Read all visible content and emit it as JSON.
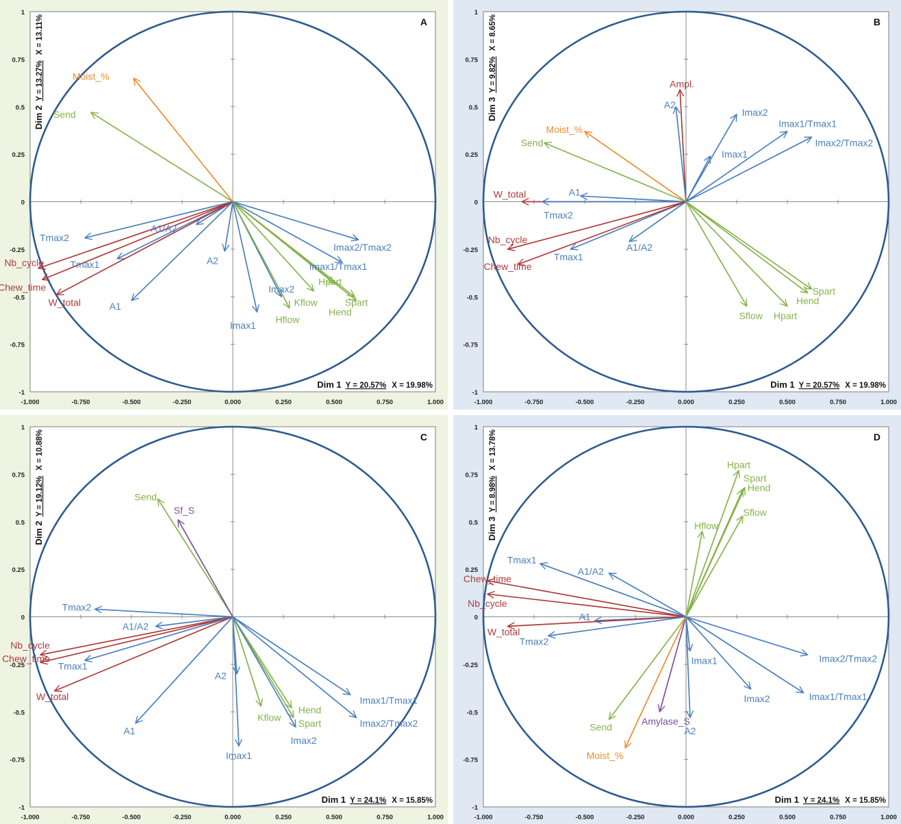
{
  "colors": {
    "blue": "#4a7fbf",
    "red": "#b03a3a",
    "green": "#86b34a",
    "orange": "#f08a2c",
    "purple": "#7b4fa0",
    "circle": "#2e5a8e",
    "panel_bg_green": "#eef3e2",
    "panel_bg_blue": "#dfe8f3"
  },
  "chart_data": [
    {
      "type": "scatter",
      "panel": "A",
      "background": "green",
      "xlim": [
        -1,
        1
      ],
      "ylim": [
        -1,
        1
      ],
      "x_ticks": [
        "-1.000",
        "-0.750",
        "-0.500",
        "-0.250",
        "0.000",
        "0.250",
        "0.500",
        "0.750",
        "1.000"
      ],
      "y_ticks": [
        "1",
        "0.75",
        "0.5",
        "0.25",
        "0",
        "-0.25",
        "-0.5",
        "-0.75",
        "-1"
      ],
      "xaxis": {
        "dim": "Dim 1",
        "y_pct": "Y = 20.57%",
        "x_pct": "X = 19.98%"
      },
      "yaxis": {
        "dim": "Dim 2",
        "y_pct": "Y = 13.27%",
        "x_pct": "X = 13.11%"
      },
      "vectors": [
        {
          "label": "Moist_%",
          "x": -0.49,
          "y": 0.65,
          "color": "orange"
        },
        {
          "label": "Send",
          "x": -0.7,
          "y": 0.47,
          "color": "green"
        },
        {
          "label": "Tmax2",
          "x": -0.73,
          "y": -0.19,
          "color": "blue"
        },
        {
          "label": "A1/A2",
          "x": -0.18,
          "y": -0.12,
          "color": "blue"
        },
        {
          "label": "Nb_cycle",
          "x": -0.96,
          "y": -0.35,
          "color": "red"
        },
        {
          "label": "Tmax1",
          "x": -0.57,
          "y": -0.3,
          "color": "blue"
        },
        {
          "label": "Chew_time",
          "x": -0.94,
          "y": -0.41,
          "color": "red"
        },
        {
          "label": "W_total",
          "x": -0.87,
          "y": -0.49,
          "color": "red"
        },
        {
          "label": "A1",
          "x": -0.5,
          "y": -0.52,
          "color": "blue"
        },
        {
          "label": "A2",
          "x": -0.04,
          "y": -0.26,
          "color": "blue"
        },
        {
          "label": "Imax1",
          "x": 0.12,
          "y": -0.58,
          "color": "blue"
        },
        {
          "label": "Imax2",
          "x": 0.24,
          "y": -0.5,
          "color": "blue"
        },
        {
          "label": "Hflow",
          "x": 0.28,
          "y": -0.56,
          "color": "green"
        },
        {
          "label": "Kflow",
          "x": 0.4,
          "y": -0.47,
          "color": "green"
        },
        {
          "label": "Hend",
          "x": 0.6,
          "y": -0.5,
          "color": "green"
        },
        {
          "label": "Spart",
          "x": 0.61,
          "y": -0.52,
          "color": "green"
        },
        {
          "label": "Hpart",
          "x": 0.5,
          "y": -0.43,
          "color": "green"
        },
        {
          "label": "Imax1/Tmax1",
          "x": 0.54,
          "y": -0.32,
          "color": "blue"
        },
        {
          "label": "Imax2/Tmax2",
          "x": 0.62,
          "y": -0.2,
          "color": "blue"
        }
      ],
      "labels": [
        {
          "text": "Moist_%",
          "lx": -0.7,
          "ly": 0.66
        },
        {
          "text": "Send",
          "lx": -0.83,
          "ly": 0.46
        },
        {
          "text": "Tmax2",
          "lx": -0.88,
          "ly": -0.19
        },
        {
          "text": "A1/A2",
          "lx": -0.34,
          "ly": -0.14
        },
        {
          "text": "Nb_cycle",
          "lx": -1.03,
          "ly": -0.32
        },
        {
          "text": "Tmax1",
          "lx": -0.73,
          "ly": -0.33
        },
        {
          "text": "Chew_time",
          "lx": -1.04,
          "ly": -0.45
        },
        {
          "text": "W_total",
          "lx": -0.83,
          "ly": -0.53
        },
        {
          "text": "A1",
          "lx": -0.58,
          "ly": -0.55
        },
        {
          "text": "A2",
          "lx": -0.1,
          "ly": -0.31
        },
        {
          "text": "Imax1",
          "lx": 0.05,
          "ly": -0.65
        },
        {
          "text": "Imax2",
          "lx": 0.24,
          "ly": -0.46
        },
        {
          "text": "Hflow",
          "lx": 0.27,
          "ly": -0.62
        },
        {
          "text": "Kflow",
          "lx": 0.36,
          "ly": -0.53
        },
        {
          "text": "Hend",
          "lx": 0.53,
          "ly": -0.58
        },
        {
          "text": "Spart",
          "lx": 0.61,
          "ly": -0.53
        },
        {
          "text": "Hpart",
          "lx": 0.48,
          "ly": -0.42
        },
        {
          "text": "Imax1/Tmax1",
          "lx": 0.52,
          "ly": -0.34
        },
        {
          "text": "Imax2/Tmax2",
          "lx": 0.64,
          "ly": -0.24
        }
      ]
    },
    {
      "type": "scatter",
      "panel": "B",
      "background": "blue",
      "xlim": [
        -1,
        1
      ],
      "ylim": [
        -1,
        1
      ],
      "x_ticks": [
        "-1.000",
        "-0.750",
        "-0.500",
        "-0.250",
        "0.000",
        "0.250",
        "0.500",
        "0.750",
        "1.000"
      ],
      "y_ticks": [
        "1",
        "0.75",
        "0.5",
        "0.25",
        "0",
        "-0.25",
        "-0.5",
        "-0.75",
        "-1"
      ],
      "xaxis": {
        "dim": "Dim 1",
        "y_pct": "Y = 20.57%",
        "x_pct": "X = 19.98%"
      },
      "yaxis": {
        "dim": "Dim 3",
        "y_pct": "Y = 9.82%",
        "x_pct": "X = 8.65%"
      },
      "vectors": [
        {
          "label": "Ampl.",
          "x": -0.03,
          "y": 0.59,
          "color": "red"
        },
        {
          "label": "A2",
          "x": -0.05,
          "y": 0.5,
          "color": "blue"
        },
        {
          "label": "Imax2",
          "x": 0.25,
          "y": 0.46,
          "color": "blue"
        },
        {
          "label": "Imax1/Tmax1",
          "x": 0.5,
          "y": 0.37,
          "color": "blue"
        },
        {
          "label": "Imax1",
          "x": 0.12,
          "y": 0.24,
          "color": "blue"
        },
        {
          "label": "Imax2/Tmax2",
          "x": 0.62,
          "y": 0.34,
          "color": "blue"
        },
        {
          "label": "Moist_%",
          "x": -0.5,
          "y": 0.37,
          "color": "orange"
        },
        {
          "label": "Send",
          "x": -0.7,
          "y": 0.31,
          "color": "green"
        },
        {
          "label": "W_total",
          "x": -0.81,
          "y": 0.0,
          "color": "red"
        },
        {
          "label": "Tmax2",
          "x": -0.71,
          "y": 0.0,
          "color": "blue"
        },
        {
          "label": "A1",
          "x": -0.52,
          "y": 0.03,
          "color": "blue"
        },
        {
          "label": "A1/A2",
          "x": -0.28,
          "y": -0.21,
          "color": "blue"
        },
        {
          "label": "Nb_cycle",
          "x": -0.88,
          "y": -0.25,
          "color": "red"
        },
        {
          "label": "Tmax1",
          "x": -0.57,
          "y": -0.25,
          "color": "blue"
        },
        {
          "label": "Chew_time",
          "x": -0.83,
          "y": -0.33,
          "color": "red"
        },
        {
          "label": "Sflow",
          "x": 0.3,
          "y": -0.55,
          "color": "green"
        },
        {
          "label": "Hpart",
          "x": 0.5,
          "y": -0.55,
          "color": "green"
        },
        {
          "label": "Hend",
          "x": 0.6,
          "y": -0.48,
          "color": "green"
        },
        {
          "label": "Spart",
          "x": 0.62,
          "y": -0.46,
          "color": "green"
        }
      ],
      "labels": [
        {
          "text": "Ampl.",
          "lx": -0.02,
          "ly": 0.62
        },
        {
          "text": "A2",
          "lx": -0.08,
          "ly": 0.51
        },
        {
          "text": "Imax2",
          "lx": 0.34,
          "ly": 0.47
        },
        {
          "text": "Imax1/Tmax1",
          "lx": 0.6,
          "ly": 0.41
        },
        {
          "text": "Imax1",
          "lx": 0.24,
          "ly": 0.25
        },
        {
          "text": "Imax2/Tmax2",
          "lx": 0.78,
          "ly": 0.31
        },
        {
          "text": "Moist_%",
          "lx": -0.6,
          "ly": 0.38
        },
        {
          "text": "Send",
          "lx": -0.76,
          "ly": 0.31
        },
        {
          "text": "W_total",
          "lx": -0.87,
          "ly": 0.04
        },
        {
          "text": "Tmax2",
          "lx": -0.63,
          "ly": -0.07
        },
        {
          "text": "A1",
          "lx": -0.55,
          "ly": 0.05
        },
        {
          "text": "A1/A2",
          "lx": -0.23,
          "ly": -0.24
        },
        {
          "text": "Nb_cycle",
          "lx": -0.88,
          "ly": -0.2
        },
        {
          "text": "Tmax1",
          "lx": -0.58,
          "ly": -0.29
        },
        {
          "text": "Chew_time",
          "lx": -0.88,
          "ly": -0.34
        },
        {
          "text": "Sflow",
          "lx": 0.32,
          "ly": -0.6
        },
        {
          "text": "Hpart",
          "lx": 0.49,
          "ly": -0.6
        },
        {
          "text": "Hend",
          "lx": 0.6,
          "ly": -0.52
        },
        {
          "text": "Spart",
          "lx": 0.68,
          "ly": -0.47
        }
      ]
    },
    {
      "type": "scatter",
      "panel": "C",
      "background": "green",
      "xlim": [
        -1,
        1
      ],
      "ylim": [
        -1,
        1
      ],
      "x_ticks": [
        "-1.000",
        "-0.750",
        "-0.500",
        "-0.250",
        "0.000",
        "0.250",
        "0.500",
        "0.750",
        "1.000"
      ],
      "y_ticks": [
        "1",
        "0.75",
        "0.5",
        "0.25",
        "0",
        "-0.25",
        "-0.5",
        "-0.75",
        "-1"
      ],
      "xaxis": {
        "dim": "Dim 1",
        "y_pct": "Y = 24.1%",
        "x_pct": "X = 15.85%"
      },
      "yaxis": {
        "dim": "Dim 2",
        "y_pct": "Y = 19.12%",
        "x_pct": "X = 10.88%"
      },
      "vectors": [
        {
          "label": "Send",
          "x": -0.37,
          "y": 0.62,
          "color": "green"
        },
        {
          "label": "Sf_S",
          "x": -0.27,
          "y": 0.51,
          "color": "purple"
        },
        {
          "label": "Tmax2",
          "x": -0.68,
          "y": 0.04,
          "color": "blue"
        },
        {
          "label": "A1/A2",
          "x": -0.38,
          "y": -0.05,
          "color": "blue"
        },
        {
          "label": "Nb_cycle",
          "x": -0.95,
          "y": -0.2,
          "color": "red"
        },
        {
          "label": "Chew_time",
          "x": -0.95,
          "y": -0.24,
          "color": "red"
        },
        {
          "label": "Tmax1",
          "x": -0.73,
          "y": -0.23,
          "color": "blue"
        },
        {
          "label": "W_total",
          "x": -0.88,
          "y": -0.39,
          "color": "red"
        },
        {
          "label": "A1",
          "x": -0.48,
          "y": -0.56,
          "color": "blue"
        },
        {
          "label": "A2",
          "x": 0.02,
          "y": -0.3,
          "color": "blue"
        },
        {
          "label": "Imax1",
          "x": 0.03,
          "y": -0.68,
          "color": "blue"
        },
        {
          "label": "Kflow",
          "x": 0.14,
          "y": -0.47,
          "color": "green"
        },
        {
          "label": "Hend",
          "x": 0.29,
          "y": -0.48,
          "color": "green"
        },
        {
          "label": "Spart",
          "x": 0.3,
          "y": -0.53,
          "color": "green"
        },
        {
          "label": "Imax2",
          "x": 0.31,
          "y": -0.58,
          "color": "blue"
        },
        {
          "label": "Imax1/Tmax1",
          "x": 0.58,
          "y": -0.41,
          "color": "blue"
        },
        {
          "label": "Imax2/Tmax2",
          "x": 0.61,
          "y": -0.53,
          "color": "blue"
        }
      ],
      "labels": [
        {
          "text": "Send",
          "lx": -0.43,
          "ly": 0.63
        },
        {
          "text": "Sf_S",
          "lx": -0.24,
          "ly": 0.56
        },
        {
          "text": "Tmax2",
          "lx": -0.77,
          "ly": 0.05
        },
        {
          "text": "A1/A2",
          "lx": -0.48,
          "ly": -0.05
        },
        {
          "text": "Nb_cycle",
          "lx": -1.0,
          "ly": -0.15
        },
        {
          "text": "Chew_time",
          "lx": -1.02,
          "ly": -0.22
        },
        {
          "text": "Tmax1",
          "lx": -0.79,
          "ly": -0.26
        },
        {
          "text": "W_total",
          "lx": -0.89,
          "ly": -0.42
        },
        {
          "text": "A1",
          "lx": -0.51,
          "ly": -0.6
        },
        {
          "text": "A2",
          "lx": -0.06,
          "ly": -0.31
        },
        {
          "text": "Imax1",
          "lx": 0.03,
          "ly": -0.73
        },
        {
          "text": "Kflow",
          "lx": 0.18,
          "ly": -0.53
        },
        {
          "text": "Hend",
          "lx": 0.38,
          "ly": -0.49
        },
        {
          "text": "Spart",
          "lx": 0.38,
          "ly": -0.56
        },
        {
          "text": "Imax2",
          "lx": 0.35,
          "ly": -0.65
        },
        {
          "text": "Imax1/Tmax1",
          "lx": 0.77,
          "ly": -0.44
        },
        {
          "text": "Imax2/Tmax2",
          "lx": 0.77,
          "ly": -0.56
        }
      ]
    },
    {
      "type": "scatter",
      "panel": "D",
      "background": "blue",
      "xlim": [
        -1,
        1
      ],
      "ylim": [
        -1,
        1
      ],
      "x_ticks": [
        "-1.000",
        "-0.750",
        "-0.500",
        "-0.250",
        "0.000",
        "0.250",
        "0.500",
        "0.750",
        "1.000"
      ],
      "y_ticks": [
        "1",
        "0.75",
        "0.5",
        "0.25",
        "0",
        "-0.25",
        "-0.5",
        "-0.75",
        "-1"
      ],
      "xaxis": {
        "dim": "Dim 1",
        "y_pct": "Y = 24.1%",
        "x_pct": "X = 15.85%"
      },
      "yaxis": {
        "dim": "Dim 3",
        "y_pct": "Y = 8.98%",
        "x_pct": "X = 13.78%"
      },
      "vectors": [
        {
          "label": "Hpart",
          "x": 0.26,
          "y": 0.77,
          "color": "green"
        },
        {
          "label": "Spart",
          "x": 0.29,
          "y": 0.68,
          "color": "green"
        },
        {
          "label": "Hend",
          "x": 0.28,
          "y": 0.67,
          "color": "green"
        },
        {
          "label": "Sflow",
          "x": 0.28,
          "y": 0.53,
          "color": "green"
        },
        {
          "label": "Hflow",
          "x": 0.08,
          "y": 0.45,
          "color": "green"
        },
        {
          "label": "Tmax1",
          "x": -0.72,
          "y": 0.28,
          "color": "blue"
        },
        {
          "label": "A1/A2",
          "x": -0.38,
          "y": 0.23,
          "color": "blue"
        },
        {
          "label": "Chew_time",
          "x": -0.98,
          "y": 0.19,
          "color": "red"
        },
        {
          "label": "Nb_cycle",
          "x": -0.98,
          "y": 0.12,
          "color": "red"
        },
        {
          "label": "A1",
          "x": -0.45,
          "y": -0.02,
          "color": "blue"
        },
        {
          "label": "W_total",
          "x": -0.88,
          "y": -0.05,
          "color": "red"
        },
        {
          "label": "Tmax2",
          "x": -0.68,
          "y": -0.1,
          "color": "blue"
        },
        {
          "label": "Imax1",
          "x": 0.02,
          "y": -0.18,
          "color": "blue"
        },
        {
          "label": "Imax2/Tmax2",
          "x": 0.6,
          "y": -0.2,
          "color": "blue"
        },
        {
          "label": "Imax2",
          "x": 0.32,
          "y": -0.38,
          "color": "blue"
        },
        {
          "label": "Imax1/Tmax1",
          "x": 0.58,
          "y": -0.4,
          "color": "blue"
        },
        {
          "label": "Send",
          "x": -0.38,
          "y": -0.54,
          "color": "green"
        },
        {
          "label": "Amylase_S",
          "x": -0.13,
          "y": -0.5,
          "color": "purple"
        },
        {
          "label": "A2",
          "x": 0.02,
          "y": -0.53,
          "color": "blue"
        },
        {
          "label": "Moist_%",
          "x": -0.3,
          "y": -0.69,
          "color": "orange"
        }
      ],
      "labels": [
        {
          "text": "Hpart",
          "lx": 0.26,
          "ly": 0.8
        },
        {
          "text": "Spart",
          "lx": 0.34,
          "ly": 0.73
        },
        {
          "text": "Hend",
          "lx": 0.36,
          "ly": 0.68
        },
        {
          "text": "Sflow",
          "lx": 0.34,
          "ly": 0.55
        },
        {
          "text": "Hflow",
          "lx": 0.1,
          "ly": 0.48
        },
        {
          "text": "Tmax1",
          "lx": -0.81,
          "ly": 0.3
        },
        {
          "text": "A1/A2",
          "lx": -0.47,
          "ly": 0.24
        },
        {
          "text": "Chew_time",
          "lx": -0.98,
          "ly": 0.2
        },
        {
          "text": "Nb_cycle",
          "lx": -0.98,
          "ly": 0.07
        },
        {
          "text": "A1",
          "lx": -0.5,
          "ly": 0.0
        },
        {
          "text": "W_total",
          "lx": -0.9,
          "ly": -0.08
        },
        {
          "text": "Tmax2",
          "lx": -0.75,
          "ly": -0.13
        },
        {
          "text": "Imax1",
          "lx": 0.09,
          "ly": -0.23
        },
        {
          "text": "Imax2/Tmax2",
          "lx": 0.8,
          "ly": -0.22
        },
        {
          "text": "Imax2",
          "lx": 0.35,
          "ly": -0.43
        },
        {
          "text": "Imax1/Tmax1",
          "lx": 0.75,
          "ly": -0.42
        },
        {
          "text": "Send",
          "lx": -0.42,
          "ly": -0.58
        },
        {
          "text": "Amylase_S",
          "lx": -0.1,
          "ly": -0.55
        },
        {
          "text": "A2",
          "lx": 0.02,
          "ly": -0.6
        },
        {
          "text": "Moist_%",
          "lx": -0.4,
          "ly": -0.73
        }
      ]
    }
  ]
}
